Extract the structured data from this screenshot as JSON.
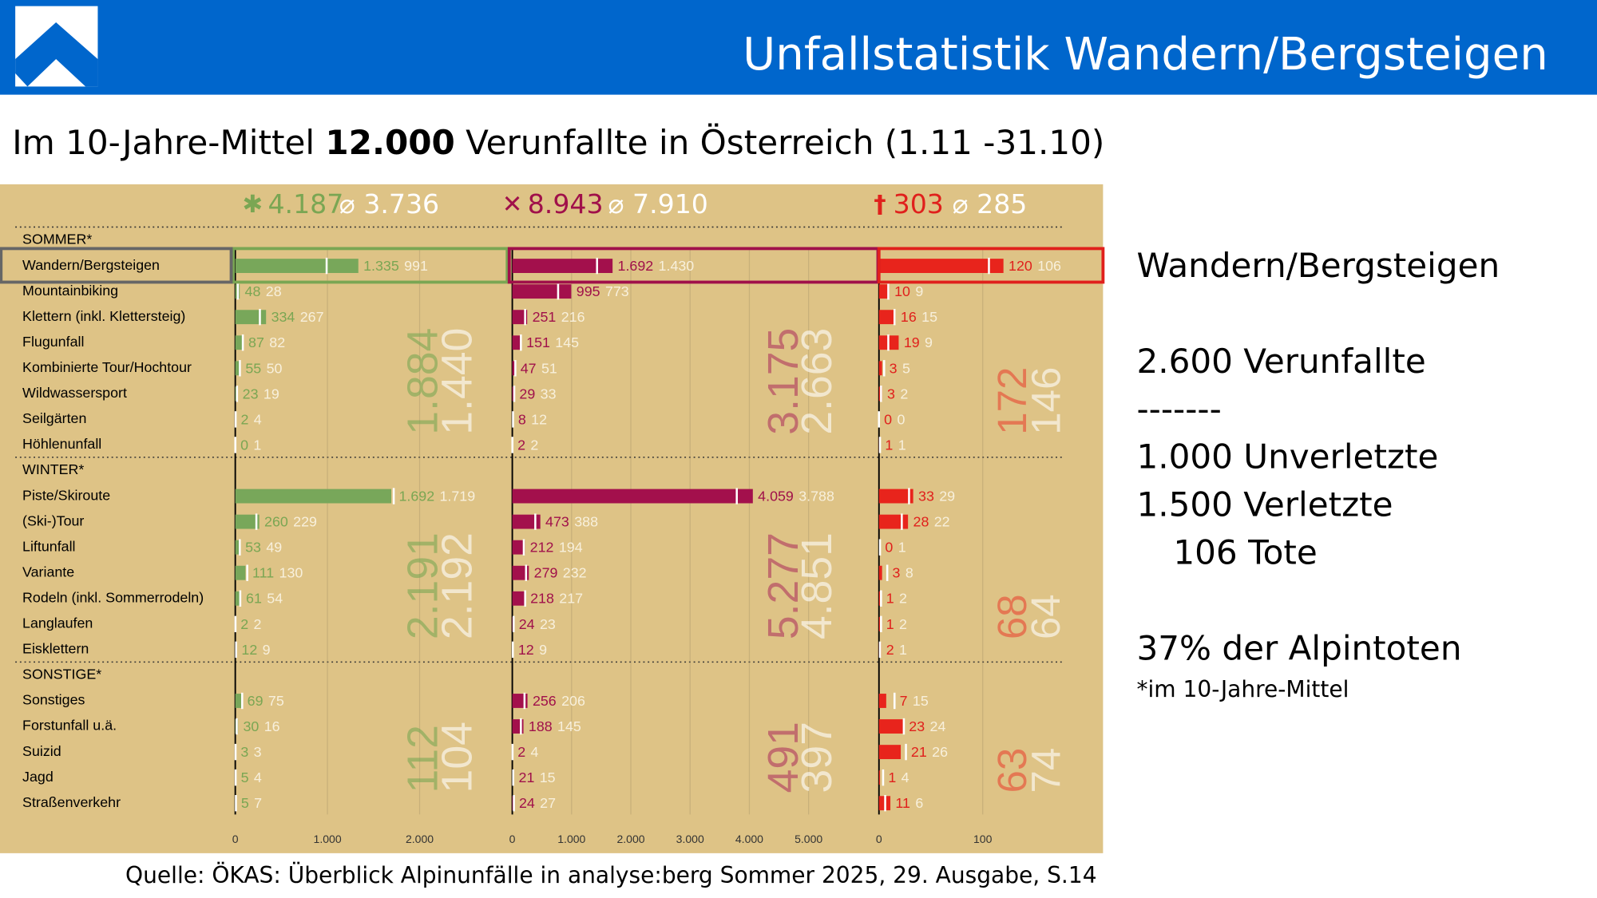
{
  "header": {
    "title": "Unfallstatistik Wandern/Bergsteigen"
  },
  "subtitle": {
    "parts": [
      "Im 10-Jahre-Mittel ",
      "12.000",
      " Verunfallte in Österreich (1.11 -31.10)"
    ]
  },
  "chart_data": {
    "type": "bar",
    "categories": [
      "SOMMER*",
      "Wandern/Bergsteigen",
      "Mountainbiking",
      "Klettern (inkl. Klettersteig)",
      "Flugunfall",
      "Kombinierte Tour/Hochtour",
      "Wildwassersport",
      "Seilgärten",
      "Höhlenunfall",
      "WINTER*",
      "Piste/Skiroute",
      "(Ski-)Tour",
      "Liftunfall",
      "Variante",
      "Rodeln (inkl. Sommerrodeln)",
      "Langlaufen",
      "Eisklettern",
      "SONSTIGE*",
      "Sonstiges",
      "Forstunfall u.ä.",
      "Suizid",
      "Jagd",
      "Straßenverkehr"
    ],
    "series": [
      {
        "color": "#78a75a",
        "symbol": "✱",
        "total": {
          "value": 4187,
          "label": "4.187"
        },
        "total_mean": {
          "value": 3736,
          "label": "⌀ 3.736"
        },
        "values": [
          null,
          1335,
          48,
          334,
          87,
          55,
          23,
          2,
          0,
          null,
          1692,
          260,
          53,
          111,
          61,
          2,
          12,
          null,
          69,
          30,
          3,
          5,
          5
        ],
        "value_labels": [
          null,
          "1.335",
          "48",
          "334",
          "87",
          "55",
          "23",
          "2",
          "0",
          null,
          "1.692",
          "260",
          "53",
          "111",
          "61",
          "2",
          "12",
          null,
          "69",
          "30",
          "3",
          "5",
          "5"
        ],
        "means": [
          null,
          991,
          28,
          267,
          82,
          50,
          19,
          4,
          1,
          null,
          1719,
          229,
          49,
          130,
          54,
          2,
          9,
          null,
          75,
          16,
          3,
          4,
          7
        ],
        "mean_labels": [
          null,
          "991",
          "28",
          "267",
          "82",
          "50",
          "19",
          "4",
          "1",
          null,
          "1.719",
          "229",
          "49",
          "130",
          "54",
          "2",
          "9",
          null,
          "75",
          "16",
          "3",
          "4",
          "7"
        ],
        "group_totals": [
          {
            "value": 1884,
            "label": "1.884"
          },
          {
            "value": 2191,
            "label": "2.191"
          },
          112
        ],
        "group_means": [
          {
            "value": 1440,
            "label": "1.440"
          },
          {
            "value": 2192,
            "label": "2.192"
          },
          104
        ],
        "xlim": [
          0,
          2950
        ],
        "xticks": [
          0,
          {
            "value": 1000,
            "label": "1.000"
          },
          {
            "value": 2000,
            "label": "2.000"
          }
        ]
      },
      {
        "color": "#a3104c",
        "symbol": "✕",
        "total": {
          "value": 8943,
          "label": "8.943"
        },
        "total_mean": {
          "value": 7910,
          "label": "⌀ 7.910"
        },
        "values": [
          null,
          1692,
          995,
          251,
          151,
          47,
          29,
          8,
          2,
          null,
          4059,
          473,
          212,
          279,
          218,
          24,
          12,
          null,
          256,
          188,
          2,
          21,
          24
        ],
        "value_labels": [
          null,
          "1.692",
          "995",
          "251",
          "151",
          "47",
          "29",
          "8",
          "2",
          null,
          "4.059",
          "473",
          "212",
          "279",
          "218",
          "24",
          "12",
          null,
          "256",
          "188",
          "2",
          "21",
          "24"
        ],
        "means": [
          null,
          1430,
          773,
          216,
          145,
          51,
          33,
          12,
          2,
          null,
          3788,
          388,
          194,
          232,
          217,
          23,
          9,
          null,
          206,
          145,
          4,
          15,
          27
        ],
        "mean_labels": [
          null,
          "1.430",
          "773",
          "216",
          "145",
          "51",
          "33",
          "12",
          "2",
          null,
          "3.788",
          "388",
          "194",
          "232",
          "217",
          "23",
          "9",
          null,
          "206",
          "145",
          "4",
          "15",
          "27"
        ],
        "group_totals": [
          {
            "value": 3175,
            "label": "3.175"
          },
          {
            "value": 5277,
            "label": "5.277"
          },
          491
        ],
        "group_means": [
          {
            "value": 2663,
            "label": "2.663"
          },
          {
            "value": 4851,
            "label": "4.851"
          },
          397
        ],
        "xlim": [
          0,
          6170
        ],
        "xticks": [
          0,
          {
            "value": 1000,
            "label": "1.000"
          },
          {
            "value": 2000,
            "label": "2.000"
          },
          {
            "value": 3000,
            "label": "3.000"
          },
          {
            "value": 4000,
            "label": "4.000"
          },
          {
            "value": 5000,
            "label": "5.000"
          }
        ]
      },
      {
        "color": "#e8241c",
        "symbol": "†",
        "total": 303,
        "total_mean": {
          "value": 285,
          "label": "⌀ 285"
        },
        "values": [
          null,
          120,
          10,
          16,
          19,
          3,
          3,
          0,
          1,
          null,
          33,
          28,
          0,
          3,
          1,
          1,
          2,
          null,
          7,
          23,
          21,
          1,
          11
        ],
        "value_labels": [
          null,
          "120",
          "10",
          "16",
          "19",
          "3",
          "3",
          "0",
          "1",
          null,
          "33",
          "28",
          "0",
          "3",
          "1",
          "1",
          "2",
          null,
          "7",
          "23",
          "21",
          "1",
          "11"
        ],
        "means": [
          null,
          106,
          9,
          15,
          9,
          5,
          2,
          0,
          1,
          null,
          29,
          22,
          1,
          8,
          2,
          2,
          1,
          null,
          15,
          24,
          26,
          4,
          6
        ],
        "mean_labels": [
          null,
          "106",
          "9",
          "15",
          "9",
          "5",
          "2",
          "0",
          "1",
          null,
          "29",
          "22",
          "1",
          "8",
          "2",
          "2",
          "1",
          null,
          "15",
          "24",
          "26",
          "4",
          "6"
        ],
        "group_totals": [
          172,
          68,
          63
        ],
        "group_means": [
          146,
          64,
          74
        ],
        "xlim": [
          0,
          215
        ],
        "xticks": [
          0,
          100
        ]
      }
    ]
  },
  "side_panel": {
    "heading": "Wandern/Bergsteigen",
    "lines": [
      "2.600 Verunfallte",
      "-------",
      "1.000 Unverletzte",
      "1.500 Verletzte",
      "106 Tote",
      "37% der Alpintoten"
    ],
    "note": "*im 10-Jahre-Mittel"
  },
  "footer": {
    "source": "Quelle: ÖKAS: Überblick Alpinunfälle in analyse:berg Sommer 2025, 29. Ausgabe, S.14"
  }
}
